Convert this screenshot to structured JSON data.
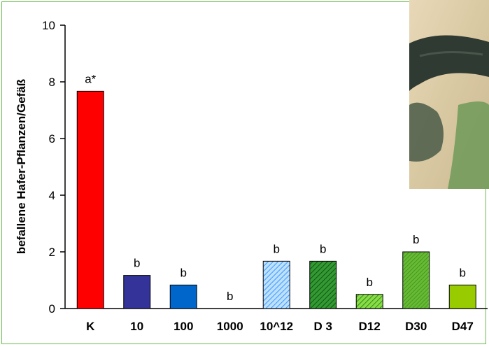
{
  "chart_data": {
    "type": "bar",
    "categories": [
      "K",
      "10",
      "100",
      "1000",
      "10^12",
      "D 3",
      "D12",
      "D30",
      "D47"
    ],
    "values": [
      7.67,
      1.17,
      0.83,
      0,
      1.67,
      1.67,
      0.5,
      2.0,
      0.83
    ],
    "labels": [
      "a*",
      "b",
      "b",
      "b",
      "b",
      "b",
      "b",
      "b",
      "b"
    ],
    "ylabel": "befallene Hafer-Pflanzen/Gefäß",
    "ylim": [
      0,
      10
    ],
    "yticks": [
      "0",
      "2",
      "4",
      "6",
      "8",
      "10"
    ],
    "grid": false,
    "colors": [
      "#ff0000",
      "#333399",
      "#0066cc",
      "#cccccc",
      "#99ccff",
      "#339933",
      "#66cc33",
      "#66bb33",
      "#99cc00"
    ],
    "patterns": [
      "solid",
      "solid",
      "solid",
      "solid",
      "hatch-blue",
      "hatch-darkgreen",
      "hatch-green",
      "hatch-green2",
      "solid"
    ]
  }
}
